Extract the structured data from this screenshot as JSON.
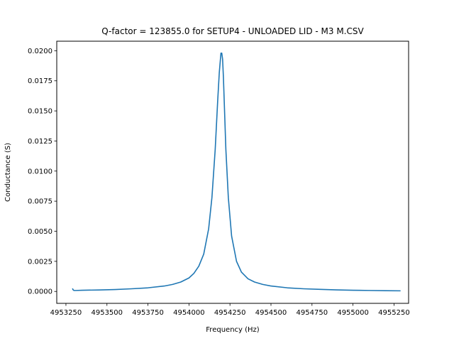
{
  "chart_data": {
    "type": "line",
    "title": "Q-factor = 123855.0 for SETUP4 - UNLOADED LID - M3 M.CSV",
    "xlabel": "Frequency (Hz)",
    "ylabel": "Conductance (S)",
    "xlim": [
      4953194,
      4955339
    ],
    "ylim": [
      -0.00099,
      0.02079
    ],
    "x_ticks": [
      4953250,
      4953500,
      4953750,
      4954000,
      4954250,
      4954500,
      4954750,
      4955000,
      4955250
    ],
    "x_tick_labels": [
      "4953250",
      "4953500",
      "4953750",
      "4954000",
      "4954250",
      "4954500",
      "4954750",
      "4955000",
      "4955250"
    ],
    "y_ticks": [
      0.0,
      0.0025,
      0.005,
      0.0075,
      0.01,
      0.0125,
      0.015,
      0.0175,
      0.02
    ],
    "y_tick_labels": [
      "0.0000",
      "0.0025",
      "0.0050",
      "0.0075",
      "0.0100",
      "0.0125",
      "0.0150",
      "0.0175",
      "0.0200"
    ],
    "grid": false,
    "series": [
      {
        "color": "#1f77b4",
        "x": [
          4953290,
          4953293,
          4953298,
          4953310,
          4953350,
          4953450,
          4953550,
          4953650,
          4953750,
          4953850,
          4953900,
          4953950,
          4954000,
          4954030,
          4954060,
          4954090,
          4954120,
          4954140,
          4954160,
          4954175,
          4954185,
          4954195,
          4954200,
          4954205,
          4954210,
          4954215,
          4954225,
          4954240,
          4954260,
          4954290,
          4954320,
          4954360,
          4954400,
          4954450,
          4954500,
          4954600,
          4954700,
          4954800,
          4954900,
          4955000,
          4955100,
          4955200,
          4955290
        ],
        "y": [
          0.00025,
          0.00015,
          8e-05,
          8e-05,
          0.0001,
          0.00012,
          0.00016,
          0.00022,
          0.0003,
          0.00045,
          0.00058,
          0.00078,
          0.00112,
          0.0015,
          0.0021,
          0.0031,
          0.0052,
          0.0078,
          0.0118,
          0.0158,
          0.0182,
          0.0198,
          0.0198,
          0.0193,
          0.0178,
          0.0158,
          0.0118,
          0.0078,
          0.0046,
          0.0025,
          0.0016,
          0.00105,
          0.00078,
          0.00058,
          0.00045,
          0.0003,
          0.00022,
          0.00017,
          0.00013,
          0.0001,
          8e-05,
          6e-05,
          5e-05
        ]
      }
    ]
  }
}
